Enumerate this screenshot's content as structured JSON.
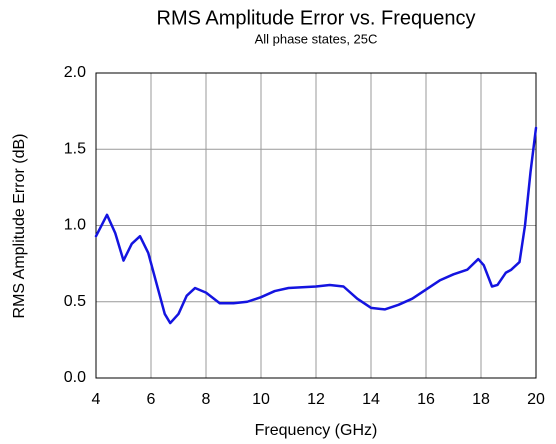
{
  "chart_data": {
    "type": "line",
    "title": "RMS Amplitude Error vs. Frequency",
    "subtitle": "All phase states, 25C",
    "x_label": "Frequency (GHz)",
    "y_label": "RMS Amplitude Error (dB)",
    "x": [
      4,
      4.4,
      4.7,
      5.0,
      5.3,
      5.6,
      5.9,
      6.2,
      6.5,
      6.7,
      7.0,
      7.3,
      7.6,
      8.0,
      8.5,
      9,
      9.5,
      10,
      10.5,
      11,
      11.5,
      12,
      12.5,
      13,
      13.5,
      14,
      14.5,
      15,
      15.5,
      16,
      16.5,
      17,
      17.5,
      17.9,
      18.1,
      18.4,
      18.6,
      18.9,
      19.1,
      19.4,
      19.6,
      19.8,
      20
    ],
    "values": [
      0.93,
      1.07,
      0.95,
      0.77,
      0.88,
      0.93,
      0.82,
      0.62,
      0.42,
      0.36,
      0.42,
      0.54,
      0.59,
      0.56,
      0.49,
      0.49,
      0.5,
      0.53,
      0.57,
      0.59,
      0.595,
      0.6,
      0.61,
      0.6,
      0.52,
      0.46,
      0.45,
      0.48,
      0.52,
      0.58,
      0.64,
      0.68,
      0.71,
      0.78,
      0.74,
      0.6,
      0.61,
      0.69,
      0.71,
      0.76,
      1.0,
      1.35,
      1.64
    ],
    "color": "#1414e0",
    "xlim": [
      4,
      20
    ],
    "xticks": [
      4,
      6,
      8,
      10,
      12,
      14,
      16,
      18,
      20
    ],
    "ylim": [
      0,
      2
    ],
    "yticks": [
      {
        "value": 0,
        "label": "0.0"
      },
      0.5,
      {
        "value": 1,
        "label": "1.0"
      },
      1.5,
      {
        "value": 2,
        "label": "2.0"
      }
    ],
    "grid": true
  }
}
